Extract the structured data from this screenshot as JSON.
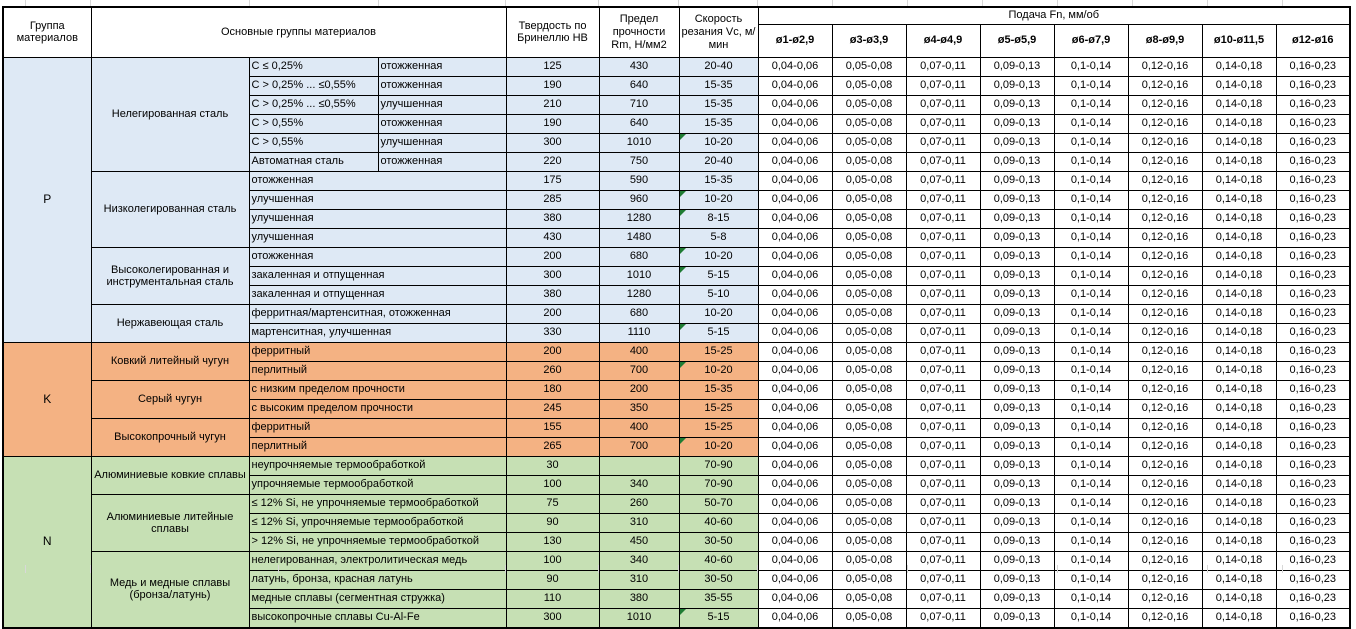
{
  "header": {
    "col_group": "Группа материалов",
    "col_main_groups": "Основные группы материалов",
    "col_hardness": "Твердость по Бринеллю HB",
    "col_strength": "Предел прочности Rm, Н/мм2",
    "col_speed": "Скорость резания Vc, м/мин",
    "col_feed": "Подача Fn, мм/об",
    "feed_diameters": [
      "ø1-ø2,9",
      "ø3-ø3,9",
      "ø4-ø4,9",
      "ø5-ø5,9",
      "ø6-ø7,9",
      "ø8-ø9,9",
      "ø10-ø11,5",
      "ø12-ø16"
    ]
  },
  "feed_values": [
    "0,04-0,06",
    "0,05-0,08",
    "0,07-0,11",
    "0,09-0,13",
    "0,1-0,14",
    "0,12-0,16",
    "0,14-0,18",
    "0,16-0,23"
  ],
  "colors": {
    "group_p": "#DEE9F5",
    "group_k": "#F4B283",
    "group_n": "#C6E0B4",
    "flag": "#1F7C33",
    "border": "#000000",
    "gridline": "#D8D8D8"
  },
  "groups": [
    {
      "code": "P",
      "color": "#DEE9F5",
      "subgroups": [
        {
          "name": "Нелегированная сталь",
          "rows": [
            {
              "detail": [
                "C ≤ 0,25%",
                "отожженная"
              ],
              "hb": "125",
              "rm": "430",
              "vc": "20-40",
              "flag": false
            },
            {
              "detail": [
                "C > 0,25% ... ≤0,55%",
                "отожженная"
              ],
              "hb": "190",
              "rm": "640",
              "vc": "15-35",
              "flag": false
            },
            {
              "detail": [
                "C > 0,25% ... ≤0,55%",
                "улучшенная"
              ],
              "hb": "210",
              "rm": "710",
              "vc": "15-35",
              "flag": false
            },
            {
              "detail": [
                "C > 0,55%",
                "отожженная"
              ],
              "hb": "190",
              "rm": "640",
              "vc": "15-35",
              "flag": false
            },
            {
              "detail": [
                "C > 0,55%",
                "улучшенная"
              ],
              "hb": "300",
              "rm": "1010",
              "vc": "10-20",
              "flag": true
            },
            {
              "detail": [
                "Автоматная сталь",
                "отожженная"
              ],
              "hb": "220",
              "rm": "750",
              "vc": "20-40",
              "flag": false
            }
          ]
        },
        {
          "name": "Низколегированная сталь",
          "rows": [
            {
              "detail": [
                "отожженная"
              ],
              "hb": "175",
              "rm": "590",
              "vc": "15-35",
              "flag": false
            },
            {
              "detail": [
                "улучшенная"
              ],
              "hb": "285",
              "rm": "960",
              "vc": "10-20",
              "flag": true
            },
            {
              "detail": [
                "улучшенная"
              ],
              "hb": "380",
              "rm": "1280",
              "vc": "8-15",
              "flag": true
            },
            {
              "detail": [
                "улучшенная"
              ],
              "hb": "430",
              "rm": "1480",
              "vc": "5-8",
              "flag": false
            }
          ]
        },
        {
          "name": "Высоколегированная и инструментальная сталь",
          "rows": [
            {
              "detail": [
                "отожженная"
              ],
              "hb": "200",
              "rm": "680",
              "vc": "10-20",
              "flag": true
            },
            {
              "detail": [
                "закаленная и отпущенная"
              ],
              "hb": "300",
              "rm": "1010",
              "vc": "5-15",
              "flag": true
            },
            {
              "detail": [
                "закаленная и отпущенная"
              ],
              "hb": "380",
              "rm": "1280",
              "vc": "5-10",
              "flag": false
            }
          ]
        },
        {
          "name": "Нержавеющая сталь",
          "rows": [
            {
              "detail": [
                "ферритная/мартенситная, отожженная"
              ],
              "hb": "200",
              "rm": "680",
              "vc": "10-20",
              "flag": false
            },
            {
              "detail": [
                "мартенситная, улучшенная"
              ],
              "hb": "330",
              "rm": "1110",
              "vc": "5-15",
              "flag": true
            }
          ]
        }
      ]
    },
    {
      "code": "K",
      "color": "#F4B283",
      "subgroups": [
        {
          "name": "Ковкий литейный чугун",
          "rows": [
            {
              "detail": [
                "ферритный"
              ],
              "hb": "200",
              "rm": "400",
              "vc": "15-25",
              "flag": false
            },
            {
              "detail": [
                "перлитный"
              ],
              "hb": "260",
              "rm": "700",
              "vc": "10-20",
              "flag": true
            }
          ]
        },
        {
          "name": "Серый чугун",
          "rows": [
            {
              "detail": [
                "с низким пределом прочности"
              ],
              "hb": "180",
              "rm": "200",
              "vc": "15-35",
              "flag": false
            },
            {
              "detail": [
                "с высоким пределом прочности"
              ],
              "hb": "245",
              "rm": "350",
              "vc": "15-25",
              "flag": false
            }
          ]
        },
        {
          "name": "Высокопрочный чугун",
          "rows": [
            {
              "detail": [
                "ферритный"
              ],
              "hb": "155",
              "rm": "400",
              "vc": "15-25",
              "flag": false
            },
            {
              "detail": [
                "перлитный"
              ],
              "hb": "265",
              "rm": "700",
              "vc": "10-20",
              "flag": true
            }
          ]
        }
      ]
    },
    {
      "code": "N",
      "color": "#C6E0B4",
      "subgroups": [
        {
          "name": "Алюминиевые ковкие сплавы",
          "rows": [
            {
              "detail": [
                "неупрочняемые термообработкой"
              ],
              "hb": "30",
              "rm": "",
              "vc": "70-90",
              "flag": false
            },
            {
              "detail": [
                "упрочняемые термообработкой"
              ],
              "hb": "100",
              "rm": "340",
              "vc": "70-90",
              "flag": false
            }
          ]
        },
        {
          "name": "Алюминиевые литейные сплавы",
          "rows": [
            {
              "detail": [
                "≤ 12% Si, не упрочняемые термообработкой"
              ],
              "hb": "75",
              "rm": "260",
              "vc": "50-70",
              "flag": false
            },
            {
              "detail": [
                "≤ 12% Si, упрочняемые термообработкой"
              ],
              "hb": "90",
              "rm": "310",
              "vc": "40-60",
              "flag": false
            },
            {
              "detail": [
                "> 12% Si, не упрочняемые термообработкой"
              ],
              "hb": "130",
              "rm": "450",
              "vc": "30-50",
              "flag": false
            }
          ]
        },
        {
          "name": "Медь и медные сплавы (бронза/латунь)",
          "rows": [
            {
              "detail": [
                "нелегированная, электролитическая медь"
              ],
              "hb": "100",
              "rm": "340",
              "vc": "40-60",
              "flag": false
            },
            {
              "detail": [
                "латунь, бронза, красная латунь"
              ],
              "hb": "90",
              "rm": "310",
              "vc": "30-50",
              "flag": false
            },
            {
              "detail": [
                "медные сплавы (сегментная стружка)"
              ],
              "hb": "110",
              "rm": "380",
              "vc": "35-55",
              "flag": false
            },
            {
              "detail": [
                "высокопрочные сплавы Cu-Al-Fe"
              ],
              "hb": "300",
              "rm": "1010",
              "vc": "5-15",
              "flag": true
            }
          ]
        }
      ]
    }
  ]
}
